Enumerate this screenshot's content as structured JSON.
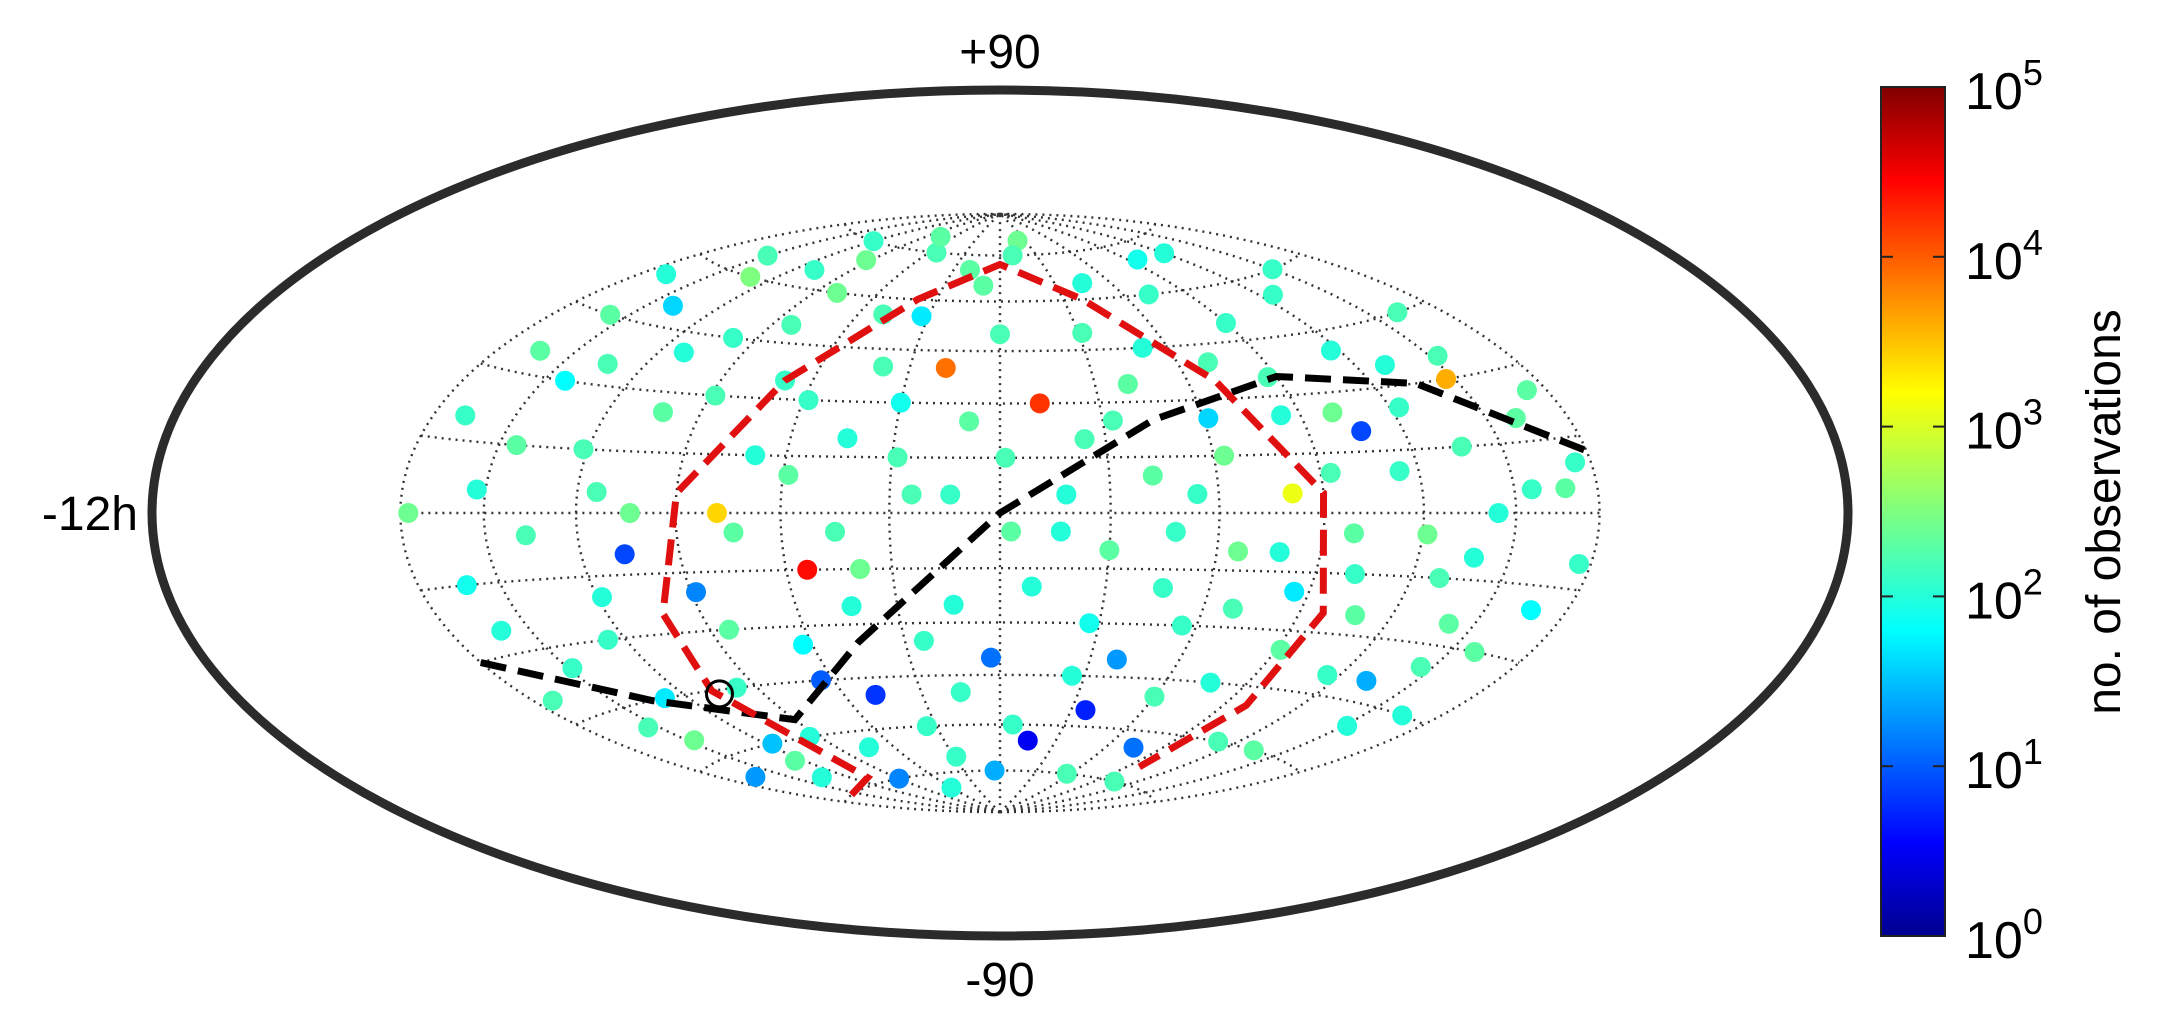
{
  "chart_data": {
    "type": "scatter",
    "projection": "Aitoff-Hammer all-sky (equatorial coordinates)",
    "labels": {
      "top": "+90",
      "bottom": "-90",
      "left": "-12h"
    },
    "colorbar": {
      "label": "no. of observations",
      "scale": "log",
      "colormap": "jet",
      "range": [
        1,
        100000
      ],
      "ticks": [
        {
          "base": "10",
          "exp": "0"
        },
        {
          "base": "10",
          "exp": "1"
        },
        {
          "base": "10",
          "exp": "2"
        },
        {
          "base": "10",
          "exp": "3"
        },
        {
          "base": "10",
          "exp": "4"
        },
        {
          "base": "10",
          "exp": "5"
        }
      ]
    },
    "grid": {
      "meridian_step_hours": 2,
      "parallel_step_deg": 15,
      "style": "dotted"
    },
    "overlay_curves": [
      {
        "color": "#000000",
        "style": "dashed",
        "points": [
          [
            -12,
            -30
          ],
          [
            -9,
            -45
          ],
          [
            -6,
            -55
          ],
          [
            -3,
            -35
          ],
          [
            0,
            0
          ],
          [
            3,
            25
          ],
          [
            6,
            35
          ],
          [
            9,
            30
          ],
          [
            12,
            12
          ]
        ]
      },
      {
        "color": "#e01010",
        "style": "dashed",
        "points": [
          [
            -10.5,
            -75
          ],
          [
            -7.3,
            -73
          ],
          [
            -7.2,
            -45
          ],
          [
            -6.8,
            -25
          ],
          [
            -6,
            5
          ],
          [
            -4.6,
            35
          ],
          [
            -2.6,
            60
          ],
          [
            0,
            72
          ],
          [
            2.6,
            60
          ],
          [
            4.6,
            35
          ],
          [
            6,
            5
          ],
          [
            6.5,
            -25
          ],
          [
            6.6,
            -50
          ],
          [
            6.5,
            -70
          ]
        ]
      }
    ],
    "marked_point": [
      -7.1,
      -46
    ],
    "points": [
      [
        -11.5,
        -40,
        2.2
      ],
      [
        -11.2,
        20,
        2.1
      ],
      [
        -10.8,
        -15,
        1.9
      ],
      [
        -10.5,
        45,
        2.3
      ],
      [
        -10.2,
        5,
        2.0
      ],
      [
        -9.8,
        -55,
        2.4
      ],
      [
        -9.5,
        30,
        1.8
      ],
      [
        -9.1,
        -5,
        2.2
      ],
      [
        -8.8,
        60,
        2.5
      ],
      [
        -8.4,
        -30,
        2.1
      ],
      [
        -8.1,
        15,
        2.2
      ],
      [
        -7.8,
        -60,
        1.5
      ],
      [
        -7.4,
        40,
        2.0
      ],
      [
        -7.1,
        -10,
        0.9
      ],
      [
        -6.8,
        25,
        2.3
      ],
      [
        -6.5,
        -45,
        2.1
      ],
      [
        -6.2,
        70,
        2.4
      ],
      [
        -5.9,
        -20,
        1.2
      ],
      [
        -5.5,
        50,
        2.2
      ],
      [
        -5.2,
        0,
        3.4
      ],
      [
        -4.9,
        -65,
        2.0
      ],
      [
        -4.6,
        35,
        2.1
      ],
      [
        -4.2,
        -35,
        1.8
      ],
      [
        -3.9,
        10,
        2.3
      ],
      [
        -3.6,
        75,
        2.2
      ],
      [
        -3.2,
        -50,
        0.8
      ],
      [
        -2.9,
        20,
        2.0
      ],
      [
        -2.6,
        -15,
        2.4
      ],
      [
        -2.2,
        55,
        1.7
      ],
      [
        -1.9,
        -70,
        2.1
      ],
      [
        -1.6,
        5,
        2.2
      ],
      [
        -1.2,
        40,
        3.9
      ],
      [
        -0.9,
        -25,
        2.0
      ],
      [
        -0.6,
        65,
        2.3
      ],
      [
        -0.2,
        -40,
        1.1
      ],
      [
        0.1,
        15,
        2.2
      ],
      [
        0.4,
        -60,
        2.1
      ],
      [
        0.8,
        30,
        4.2
      ],
      [
        1.1,
        -5,
        2.0
      ],
      [
        1.4,
        80,
        2.4
      ],
      [
        1.8,
        -30,
        1.9
      ],
      [
        2.1,
        50,
        2.2
      ],
      [
        2.4,
        -55,
        0.7
      ],
      [
        2.8,
        10,
        2.3
      ],
      [
        3.1,
        -20,
        2.1
      ],
      [
        3.4,
        45,
        2.0
      ],
      [
        3.8,
        -75,
        2.2
      ],
      [
        4.1,
        25,
        1.6
      ],
      [
        4.4,
        -10,
        2.4
      ],
      [
        4.8,
        60,
        2.1
      ],
      [
        5.1,
        -45,
        2.0
      ],
      [
        5.4,
        5,
        3.1
      ],
      [
        5.8,
        35,
        2.2
      ],
      [
        6.1,
        -35,
        2.3
      ],
      [
        6.4,
        70,
        1.9
      ],
      [
        6.8,
        -15,
        2.1
      ],
      [
        7.1,
        20,
        0.9
      ],
      [
        7.4,
        -60,
        2.2
      ],
      [
        7.8,
        40,
        2.0
      ],
      [
        8.1,
        -5,
        2.4
      ],
      [
        8.4,
        55,
        2.1
      ],
      [
        8.8,
        -40,
        1.4
      ],
      [
        9.1,
        15,
        2.2
      ],
      [
        9.4,
        -25,
        2.3
      ],
      [
        9.8,
        30,
        3.6
      ],
      [
        10.1,
        -50,
        2.0
      ],
      [
        10.4,
        5,
        2.1
      ],
      [
        10.8,
        45,
        2.2
      ],
      [
        11.1,
        -20,
        1.8
      ],
      [
        11.5,
        25,
        2.3
      ],
      [
        -11.0,
        -65,
        1.3
      ],
      [
        -10.0,
        65,
        2.2
      ],
      [
        -9.0,
        -70,
        2.0
      ],
      [
        -8.0,
        75,
        2.1
      ],
      [
        -6.0,
        -75,
        1.2
      ],
      [
        -5.0,
        80,
        2.3
      ],
      [
        -4.0,
        -80,
        2.0
      ],
      [
        -3.0,
        -5,
        2.2
      ],
      [
        -2.0,
        30,
        1.9
      ],
      [
        -1.0,
        -50,
        2.1
      ],
      [
        0.0,
        50,
        2.2
      ],
      [
        1.0,
        -65,
        0.5
      ],
      [
        2.0,
        -10,
        2.3
      ],
      [
        3.0,
        65,
        2.0
      ],
      [
        4.0,
        -50,
        2.2
      ],
      [
        5.0,
        -65,
        1.1
      ],
      [
        6.0,
        50,
        2.1
      ],
      [
        7.0,
        -75,
        2.2
      ],
      [
        8.0,
        70,
        2.0
      ],
      [
        9.0,
        -60,
        2.3
      ],
      [
        10.0,
        60,
        2.1
      ],
      [
        11.0,
        -45,
        2.0
      ],
      [
        -11.8,
        0,
        2.4
      ],
      [
        -10.7,
        -25,
        2.0
      ],
      [
        -9.6,
        15,
        2.3
      ],
      [
        -8.6,
        -45,
        1.7
      ],
      [
        -7.6,
        5,
        2.2
      ],
      [
        -6.6,
        45,
        2.1
      ],
      [
        -5.6,
        -30,
        2.3
      ],
      [
        -4.6,
        15,
        2.0
      ],
      [
        -3.6,
        -15,
        4.4
      ],
      [
        -2.6,
        40,
        2.2
      ],
      [
        -1.6,
        -35,
        2.1
      ],
      [
        -0.6,
        25,
        2.3
      ],
      [
        0.6,
        -20,
        2.0
      ],
      [
        1.6,
        20,
        2.2
      ],
      [
        2.6,
        -40,
        1.3
      ],
      [
        3.6,
        5,
        2.1
      ],
      [
        4.6,
        -25,
        2.2
      ],
      [
        5.6,
        25,
        2.0
      ],
      [
        6.6,
        -5,
        2.3
      ],
      [
        7.6,
        10,
        2.1
      ],
      [
        8.6,
        -15,
        2.2
      ],
      [
        9.6,
        0,
        2.0
      ],
      [
        10.6,
        -30,
        2.3
      ],
      [
        11.6,
        10,
        2.1
      ],
      [
        -11.3,
        55,
        2.0
      ],
      [
        -10.3,
        -50,
        2.2
      ],
      [
        -9.3,
        50,
        1.6
      ],
      [
        -8.3,
        -65,
        2.3
      ],
      [
        -7.3,
        65,
        2.1
      ],
      [
        -6.3,
        -60,
        2.0
      ],
      [
        -5.3,
        60,
        2.4
      ],
      [
        -4.3,
        -45,
        1.0
      ],
      [
        -3.3,
        55,
        2.2
      ],
      [
        -2.3,
        -60,
        2.1
      ],
      [
        -1.3,
        70,
        2.3
      ],
      [
        -0.3,
        -75,
        1.4
      ],
      [
        0.7,
        75,
        2.2
      ],
      [
        1.7,
        -45,
        2.0
      ],
      [
        2.7,
        35,
        2.3
      ],
      [
        3.7,
        -30,
        2.1
      ],
      [
        4.7,
        40,
        2.2
      ],
      [
        5.7,
        -20,
        1.7
      ],
      [
        6.7,
        25,
        2.4
      ],
      [
        7.7,
        -40,
        2.1
      ],
      [
        8.7,
        35,
        2.0
      ],
      [
        9.7,
        -35,
        2.2
      ],
      [
        10.7,
        20,
        2.3
      ],
      [
        11.7,
        -10,
        2.1
      ],
      [
        -10.9,
        35,
        2.3
      ],
      [
        -9.9,
        -35,
        2.1
      ],
      [
        -8.9,
        35,
        2.2
      ],
      [
        -7.9,
        -20,
        2.0
      ],
      [
        -6.9,
        0,
        2.4
      ],
      [
        -5.9,
        30,
        2.2
      ],
      [
        -4.9,
        -5,
        2.3
      ],
      [
        -3.9,
        30,
        2.1
      ],
      [
        -2.9,
        -25,
        2.0
      ],
      [
        -1.9,
        15,
        2.2
      ],
      [
        -0.9,
        5,
        2.1
      ],
      [
        0.2,
        -5,
        2.3
      ],
      [
        1.2,
        5,
        2.0
      ],
      [
        2.2,
        25,
        2.2
      ],
      [
        3.2,
        -5,
        2.1
      ],
      [
        4.2,
        15,
        2.4
      ],
      [
        5.2,
        -10,
        2.0
      ],
      [
        6.2,
        10,
        2.2
      ],
      [
        7.2,
        -25,
        2.3
      ],
      [
        8.2,
        25,
        2.1
      ],
      [
        9.2,
        -10,
        2.0
      ],
      [
        10.2,
        35,
        2.2
      ],
      [
        11.2,
        5,
        2.3
      ]
    ]
  }
}
